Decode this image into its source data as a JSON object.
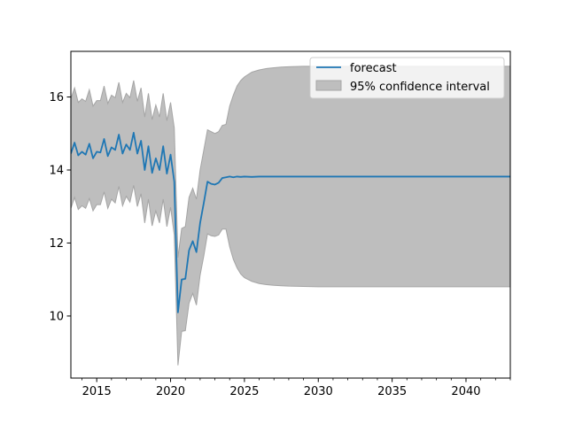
{
  "chart_data": {
    "type": "line",
    "title": "",
    "xlabel": "",
    "ylabel": "",
    "xlim": [
      2013.25,
      2043.0
    ],
    "ylim": [
      8.3,
      17.25
    ],
    "grid": false,
    "legend_position": "top-right",
    "x_ticks": [
      2015,
      2020,
      2025,
      2030,
      2035,
      2040
    ],
    "x_tick_labels": [
      "2015",
      "2020",
      "2025",
      "2030",
      "2035",
      "2040"
    ],
    "y_ticks": [
      10,
      12,
      14,
      16
    ],
    "y_tick_labels": [
      "10",
      "12",
      "14",
      "16"
    ],
    "colors": {
      "forecast": "#1f77b4",
      "interval": "#bebebe",
      "interval_edge": "#a5a5a5"
    },
    "series": [
      {
        "name": "forecast",
        "x": [
          2013.25,
          2013.5,
          2013.75,
          2014.0,
          2014.25,
          2014.5,
          2014.75,
          2015.0,
          2015.25,
          2015.5,
          2015.75,
          2016.0,
          2016.25,
          2016.5,
          2016.75,
          2017.0,
          2017.25,
          2017.5,
          2017.75,
          2018.0,
          2018.25,
          2018.5,
          2018.75,
          2019.0,
          2019.25,
          2019.5,
          2019.75,
          2020.0,
          2020.25,
          2020.5,
          2020.75,
          2021.0,
          2021.25,
          2021.5,
          2021.75,
          2022.0,
          2022.25,
          2022.5,
          2022.75,
          2023.0,
          2023.25,
          2023.5,
          2023.75,
          2024.0,
          2024.25,
          2024.5,
          2024.75,
          2025.0,
          2025.5,
          2026.0,
          2027.0,
          2028.0,
          2030.0,
          2035.0,
          2040.0,
          2043.0
        ],
        "values": [
          14.45,
          14.75,
          14.4,
          14.5,
          14.42,
          14.72,
          14.32,
          14.5,
          14.48,
          14.85,
          14.38,
          14.62,
          14.55,
          14.97,
          14.45,
          14.7,
          14.55,
          15.02,
          14.45,
          14.8,
          14.0,
          14.65,
          13.92,
          14.32,
          14.0,
          14.65,
          13.9,
          14.42,
          13.68,
          10.1,
          11.0,
          11.02,
          11.8,
          12.05,
          11.75,
          12.55,
          13.1,
          13.68,
          13.62,
          13.6,
          13.65,
          13.78,
          13.8,
          13.82,
          13.8,
          13.82,
          13.81,
          13.82,
          13.81,
          13.82,
          13.82,
          13.82,
          13.82,
          13.82,
          13.82,
          13.82
        ]
      }
    ],
    "interval": {
      "name": "95% confidence interval",
      "x": [
        2013.25,
        2013.5,
        2013.75,
        2014.0,
        2014.25,
        2014.5,
        2014.75,
        2015.0,
        2015.25,
        2015.5,
        2015.75,
        2016.0,
        2016.25,
        2016.5,
        2016.75,
        2017.0,
        2017.25,
        2017.5,
        2017.75,
        2018.0,
        2018.25,
        2018.5,
        2018.75,
        2019.0,
        2019.25,
        2019.5,
        2019.75,
        2020.0,
        2020.25,
        2020.5,
        2020.75,
        2021.0,
        2021.25,
        2021.5,
        2021.75,
        2022.0,
        2022.25,
        2022.5,
        2022.75,
        2023.0,
        2023.25,
        2023.5,
        2023.75,
        2024.0,
        2024.25,
        2024.5,
        2024.75,
        2025.0,
        2025.5,
        2026.0,
        2026.5,
        2027.0,
        2027.5,
        2028.0,
        2029.0,
        2030.0,
        2032.0,
        2035.0,
        2040.0,
        2043.0
      ],
      "upper": [
        15.95,
        16.25,
        15.85,
        15.95,
        15.88,
        16.2,
        15.75,
        15.9,
        15.9,
        16.3,
        15.82,
        16.05,
        15.98,
        16.4,
        15.85,
        16.1,
        15.98,
        16.45,
        15.88,
        16.25,
        15.45,
        16.1,
        15.38,
        15.78,
        15.45,
        16.1,
        15.35,
        15.85,
        15.15,
        11.6,
        12.4,
        12.45,
        13.25,
        13.5,
        13.2,
        14.0,
        14.55,
        15.1,
        15.05,
        15.0,
        15.05,
        15.22,
        15.25,
        15.75,
        16.05,
        16.3,
        16.45,
        16.55,
        16.68,
        16.74,
        16.78,
        16.8,
        16.82,
        16.83,
        16.84,
        16.84,
        16.84,
        16.84,
        16.84,
        16.84
      ],
      "lower": [
        12.95,
        13.25,
        12.92,
        13.02,
        12.95,
        13.22,
        12.88,
        13.05,
        13.05,
        13.4,
        12.95,
        13.2,
        13.1,
        13.55,
        13.02,
        13.28,
        13.12,
        13.58,
        13.0,
        13.35,
        12.55,
        13.2,
        12.47,
        12.88,
        12.55,
        13.2,
        12.45,
        12.98,
        12.22,
        8.65,
        9.58,
        9.6,
        10.35,
        10.62,
        10.3,
        11.12,
        11.65,
        12.25,
        12.2,
        12.18,
        12.22,
        12.38,
        12.38,
        11.9,
        11.55,
        11.32,
        11.15,
        11.05,
        10.95,
        10.89,
        10.86,
        10.84,
        10.83,
        10.82,
        10.81,
        10.8,
        10.8,
        10.8,
        10.8,
        10.8
      ]
    }
  }
}
